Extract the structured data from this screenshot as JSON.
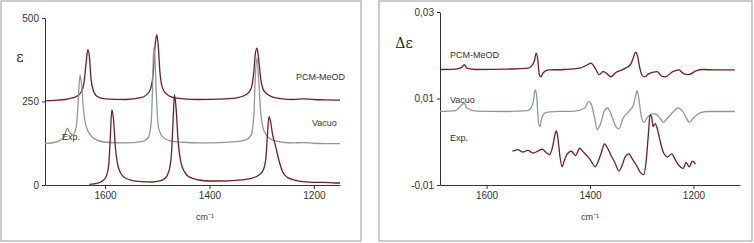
{
  "chart_data": [
    {
      "type": "line",
      "y_label": "ε",
      "x_label": "cm⁻¹",
      "xlim": [
        1715,
        1150
      ],
      "xticks": [
        1600,
        1400,
        1200
      ],
      "ylim": [
        0,
        500
      ],
      "yticks": [
        0,
        250,
        500
      ],
      "series": [
        {
          "name": "PCM-MeOD",
          "color": "#6e1f23",
          "x": [
            1715,
            1690,
            1670,
            1655,
            1645,
            1640,
            1636,
            1633,
            1630,
            1627,
            1623,
            1615,
            1600,
            1560,
            1530,
            1515,
            1508,
            1504,
            1501,
            1498,
            1495,
            1490,
            1482,
            1470,
            1450,
            1420,
            1380,
            1350,
            1330,
            1320,
            1315,
            1312,
            1309,
            1306,
            1302,
            1295,
            1280,
            1260,
            1240,
            1220,
            1200,
            1180,
            1150
          ],
          "values": [
            252,
            254,
            258,
            265,
            280,
            310,
            370,
            405,
            385,
            320,
            285,
            265,
            258,
            256,
            262,
            280,
            330,
            420,
            450,
            415,
            340,
            290,
            272,
            262,
            258,
            256,
            257,
            260,
            270,
            290,
            340,
            395,
            410,
            380,
            320,
            280,
            264,
            258,
            256,
            258,
            256,
            255,
            254
          ]
        },
        {
          "name": "Vacuo",
          "color": "#8a9a9a",
          "x": [
            1715,
            1695,
            1680,
            1675,
            1672,
            1668,
            1662,
            1655,
            1651,
            1648,
            1645,
            1641,
            1635,
            1620,
            1600,
            1560,
            1530,
            1518,
            1512,
            1509,
            1507,
            1505,
            1502,
            1498,
            1490,
            1475,
            1450,
            1420,
            1380,
            1350,
            1330,
            1320,
            1315,
            1312,
            1309,
            1306,
            1302,
            1295,
            1280,
            1260,
            1240,
            1220,
            1200,
            1180,
            1150
          ],
          "values": [
            124,
            128,
            140,
            160,
            170,
            158,
            150,
            175,
            260,
            330,
            300,
            220,
            170,
            138,
            128,
            126,
            130,
            140,
            180,
            290,
            410,
            395,
            280,
            175,
            145,
            132,
            128,
            126,
            127,
            130,
            135,
            150,
            210,
            330,
            380,
            320,
            220,
            160,
            135,
            128,
            126,
            127,
            125,
            124,
            124
          ]
        },
        {
          "name": "Exp.",
          "color": "#6e1f23",
          "x": [
            1630,
            1615,
            1605,
            1598,
            1593,
            1590,
            1587,
            1584,
            1580,
            1574,
            1565,
            1550,
            1530,
            1510,
            1495,
            1485,
            1478,
            1473,
            1470,
            1467,
            1464,
            1460,
            1455,
            1448,
            1440,
            1420,
            1400,
            1380,
            1350,
            1320,
            1305,
            1297,
            1292,
            1289,
            1286,
            1283,
            1279,
            1274,
            1268,
            1260,
            1250,
            1235,
            1220,
            1200,
            1180,
            1160,
            1150
          ],
          "values": [
            2,
            5,
            12,
            25,
            60,
            140,
            225,
            200,
            110,
            50,
            25,
            14,
            10,
            9,
            12,
            20,
            40,
            90,
            180,
            270,
            230,
            130,
            70,
            40,
            25,
            15,
            12,
            12,
            14,
            20,
            30,
            45,
            80,
            150,
            205,
            190,
            150,
            120,
            80,
            40,
            22,
            14,
            10,
            8,
            8,
            6,
            6
          ]
        }
      ]
    },
    {
      "type": "line",
      "y_label": "Δε",
      "x_label": "cm⁻¹",
      "xlim": [
        1690,
        1110
      ],
      "xticks": [
        1600,
        1400,
        1200
      ],
      "ylim": [
        -0.01,
        0.03
      ],
      "yticks": [
        {
          "value": 0.03,
          "label": "0,03"
        },
        {
          "value": 0.01,
          "label": "0,01"
        },
        {
          "value": -0.01,
          "label": "-0,01"
        }
      ],
      "series": [
        {
          "name": "PCM-MeOD",
          "color": "#6e1f23",
          "x": [
            1690,
            1660,
            1648,
            1643,
            1638,
            1620,
            1560,
            1520,
            1508,
            1504,
            1501,
            1498,
            1495,
            1490,
            1480,
            1450,
            1420,
            1405,
            1398,
            1390,
            1382,
            1375,
            1368,
            1360,
            1350,
            1335,
            1322,
            1316,
            1312,
            1308,
            1304,
            1300,
            1295,
            1285,
            1270,
            1262,
            1255,
            1240,
            1228,
            1220,
            1210,
            1195,
            1180,
            1160,
            1140,
            1120
          ],
          "values": [
            0.0167,
            0.0168,
            0.0172,
            0.0178,
            0.017,
            0.0167,
            0.0168,
            0.017,
            0.0185,
            0.0205,
            0.019,
            0.0155,
            0.015,
            0.016,
            0.0166,
            0.0167,
            0.017,
            0.0178,
            0.0182,
            0.017,
            0.0155,
            0.0162,
            0.0158,
            0.015,
            0.016,
            0.0168,
            0.0178,
            0.0195,
            0.0207,
            0.0198,
            0.0172,
            0.0155,
            0.015,
            0.0158,
            0.0162,
            0.0152,
            0.015,
            0.0162,
            0.0166,
            0.0158,
            0.0155,
            0.0164,
            0.0167,
            0.0166,
            0.0166,
            0.0166
          ]
        },
        {
          "name": "Vacuo",
          "color": "#8a9a9a",
          "x": [
            1690,
            1660,
            1648,
            1643,
            1638,
            1620,
            1560,
            1520,
            1510,
            1506,
            1503,
            1500,
            1497,
            1493,
            1485,
            1460,
            1430,
            1410,
            1403,
            1398,
            1392,
            1386,
            1380,
            1372,
            1366,
            1358,
            1350,
            1344,
            1336,
            1325,
            1316,
            1312,
            1309,
            1305,
            1301,
            1296,
            1288,
            1275,
            1265,
            1258,
            1250,
            1240,
            1230,
            1222,
            1215,
            1208,
            1200,
            1185,
            1170,
            1150,
            1130,
            1120
          ],
          "values": [
            0.007,
            0.0072,
            0.0085,
            0.0089,
            0.0078,
            0.0071,
            0.007,
            0.0072,
            0.009,
            0.012,
            0.0105,
            0.005,
            0.0035,
            0.0055,
            0.0068,
            0.007,
            0.0071,
            0.0078,
            0.0093,
            0.0088,
            0.006,
            0.0028,
            0.004,
            0.0072,
            0.0078,
            0.006,
            0.0035,
            0.003,
            0.0055,
            0.007,
            0.0085,
            0.0105,
            0.0118,
            0.0095,
            0.006,
            0.0045,
            0.0058,
            0.0065,
            0.0055,
            0.0045,
            0.0055,
            0.0068,
            0.0078,
            0.0072,
            0.0058,
            0.0045,
            0.0055,
            0.0068,
            0.007,
            0.007,
            0.007,
            0.007
          ]
        },
        {
          "name": "Exp.",
          "color": "#6e1f23",
          "x": [
            1550,
            1540,
            1530,
            1520,
            1510,
            1500,
            1492,
            1485,
            1478,
            1472,
            1468,
            1465,
            1462,
            1458,
            1454,
            1450,
            1444,
            1436,
            1428,
            1420,
            1412,
            1404,
            1396,
            1390,
            1384,
            1378,
            1372,
            1366,
            1360,
            1352,
            1344,
            1338,
            1332,
            1325,
            1318,
            1310,
            1302,
            1296,
            1291,
            1287,
            1284,
            1281,
            1278,
            1274,
            1270,
            1265,
            1258,
            1250,
            1242,
            1235,
            1228,
            1220,
            1214,
            1208,
            1202,
            1196
          ],
          "values": [
            -0.0022,
            -0.0018,
            -0.0024,
            -0.002,
            -0.0026,
            -0.0021,
            -0.0017,
            -0.0025,
            -0.003,
            -0.001,
            0.0015,
            0.0025,
            0.0008,
            -0.0035,
            -0.0058,
            -0.0045,
            -0.0028,
            -0.0022,
            -0.0032,
            -0.0015,
            -0.0025,
            -0.0035,
            -0.0048,
            -0.0058,
            -0.0045,
            -0.0025,
            -0.0005,
            -0.0015,
            -0.003,
            -0.0048,
            -0.0068,
            -0.0055,
            -0.0035,
            -0.0028,
            -0.004,
            -0.0055,
            -0.0072,
            -0.0076,
            -0.004,
            0.002,
            0.0062,
            0.0058,
            0.0035,
            0.0042,
            0.003,
            0.0005,
            -0.0025,
            -0.0035,
            -0.0028,
            -0.0042,
            -0.0055,
            -0.0062,
            -0.0048,
            -0.0058,
            -0.0045,
            -0.0052
          ]
        }
      ]
    }
  ]
}
